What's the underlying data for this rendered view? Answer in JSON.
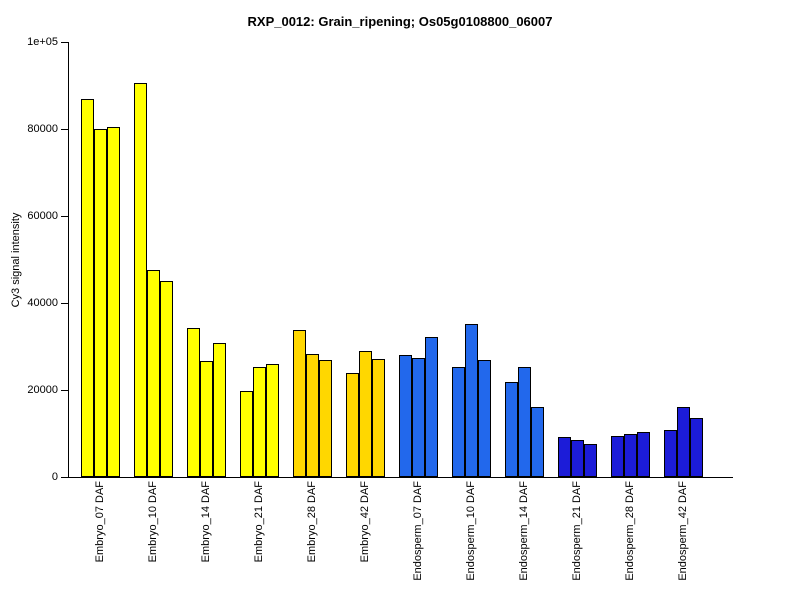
{
  "chart_data": {
    "type": "bar",
    "title": "RXP_0012: Grain_ripening; Os05g0108800_06007",
    "ylabel": "Cy3 signal intensity",
    "xlabel": "",
    "ylim": [
      0,
      100000
    ],
    "ymax": 100000,
    "grid": false,
    "legend": "none",
    "yticks": [
      {
        "value": 0,
        "label": "0"
      },
      {
        "value": 20000,
        "label": "20000"
      },
      {
        "value": 40000,
        "label": "40000"
      },
      {
        "value": 60000,
        "label": "60000"
      },
      {
        "value": 80000,
        "label": "80000"
      },
      {
        "value": 100000,
        "label": "1e+05"
      }
    ],
    "colors": {
      "embryo_early": "#FFFF00",
      "embryo_late": "#FFD700",
      "endosperm_early": "#2268EC",
      "endosperm_late": "#1C1CD8",
      "bar_border": "#000000"
    },
    "bars_per_group": 3,
    "groups": [
      {
        "label": "Embryo_07 DAF",
        "color": "#FFFF00",
        "values": [
          87000,
          80000,
          80500
        ]
      },
      {
        "label": "Embryo_10 DAF",
        "color": "#FFFF00",
        "values": [
          90500,
          47700,
          45000
        ]
      },
      {
        "label": "Embryo_14 DAF",
        "color": "#FFFF00",
        "values": [
          34300,
          26700,
          30800
        ]
      },
      {
        "label": "Embryo_21 DAF",
        "color": "#FFFF00",
        "values": [
          19800,
          25300,
          26000
        ]
      },
      {
        "label": "Embryo_28 DAF",
        "color": "#FFD700",
        "values": [
          33800,
          28300,
          26900
        ]
      },
      {
        "label": "Embryo_42 DAF",
        "color": "#FFD700",
        "values": [
          23900,
          29000,
          27100
        ]
      },
      {
        "label": "Endosperm_07 DAF",
        "color": "#2268EC",
        "values": [
          28000,
          27400,
          32200
        ]
      },
      {
        "label": "Endosperm_10 DAF",
        "color": "#2268EC",
        "values": [
          25300,
          35200,
          26900
        ]
      },
      {
        "label": "Endosperm_14 DAF",
        "color": "#2268EC",
        "values": [
          21800,
          25300,
          16100
        ]
      },
      {
        "label": "Endosperm_21 DAF",
        "color": "#1C1CD8",
        "values": [
          9200,
          8500,
          7600
        ]
      },
      {
        "label": "Endosperm_28 DAF",
        "color": "#1C1CD8",
        "values": [
          9400,
          9900,
          10300
        ]
      },
      {
        "label": "Endosperm_42 DAF",
        "color": "#1C1CD8",
        "values": [
          10800,
          16100,
          13600
        ]
      }
    ]
  }
}
